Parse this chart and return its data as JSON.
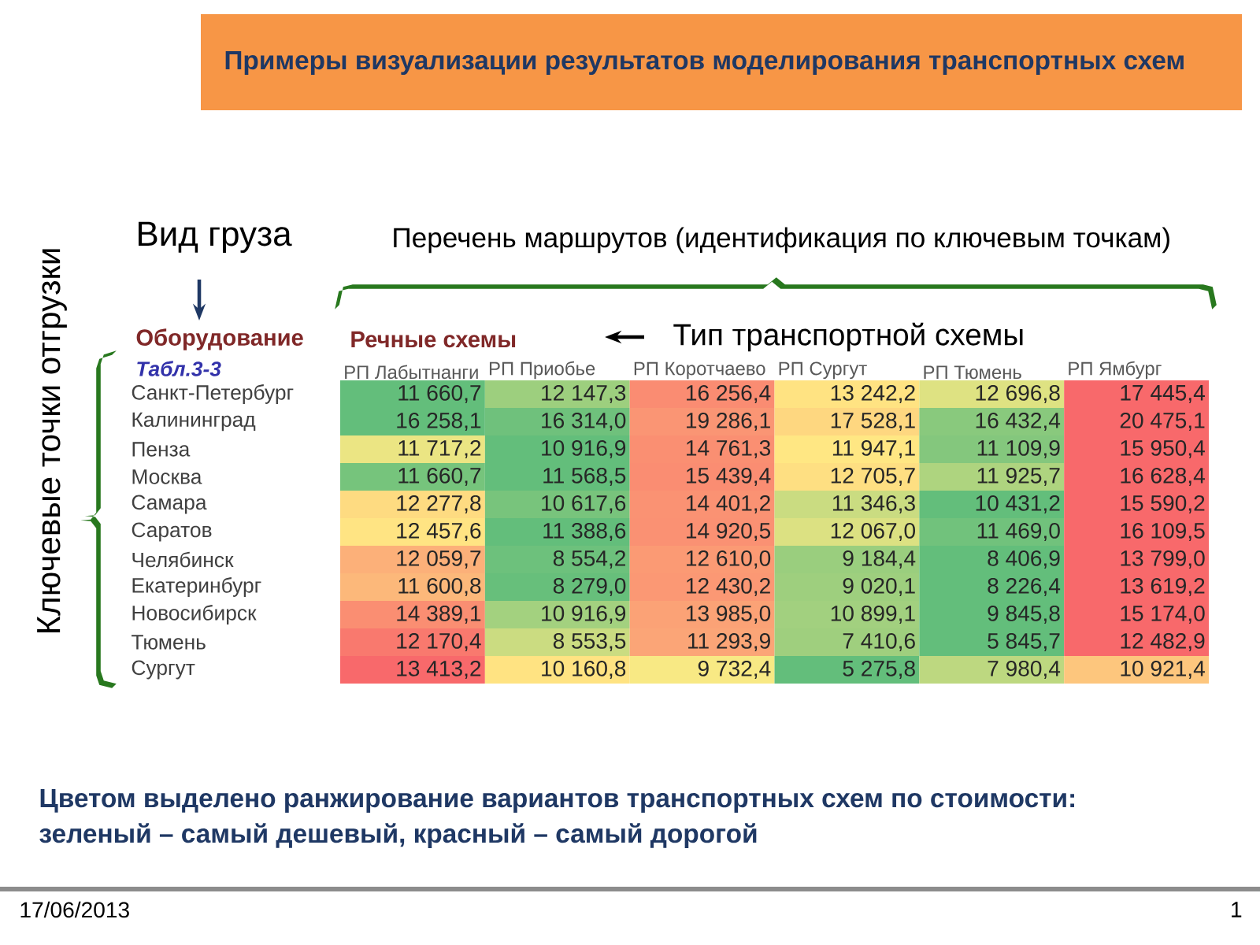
{
  "chart_data": {
    "type": "heatmap",
    "title": "Примеры визуализации результатов моделирования транспортных схем",
    "xlabel": "Перечень маршрутов (идентификация по ключевым точкам)",
    "ylabel": "Ключевые точки отгрузки",
    "annotations": [
      "Вид груза",
      "Тип транспортной схемы",
      "Оборудование",
      "Речные схемы",
      "Табл.3-3",
      "Цветом выделено ранжирование вариантов транспортных схем по стоимости:",
      "зеленый – самый дешевый, красный – самый дорогой",
      "17/06/2013",
      "1"
    ],
    "categories": [
      "РП Лабытнанги",
      "РП Приобье",
      "РП Коротчаево",
      "РП Сургут",
      "РП Тюмень",
      "РП Ямбург"
    ],
    "y_categories": [
      "Санкт-Петербург",
      "Калининград",
      "Пенза",
      "Москва",
      "Самара",
      "Саратов",
      "Челябинск",
      "Екатеринбург",
      "Новосибирск",
      "Тюмень",
      "Сургут"
    ],
    "cells": [
      [
        11660.7,
        12147.3,
        16256.4,
        13242.2,
        12696.8,
        17445.4
      ],
      [
        16258.1,
        16314.0,
        19286.1,
        17528.1,
        16432.4,
        20475.1
      ],
      [
        11717.2,
        10916.9,
        14761.3,
        11947.1,
        11109.9,
        15950.4
      ],
      [
        11660.7,
        11568.5,
        15439.4,
        12705.7,
        11925.7,
        16628.4
      ],
      [
        12277.8,
        10617.6,
        14401.2,
        11346.3,
        10431.2,
        15590.2
      ],
      [
        12457.6,
        11388.6,
        14920.5,
        12067.0,
        11469.0,
        16109.5
      ],
      [
        12059.7,
        8554.2,
        12610.0,
        9184.4,
        8406.9,
        13799.0
      ],
      [
        11600.8,
        8279.0,
        12430.2,
        9020.1,
        8226.4,
        13619.2
      ],
      [
        14389.1,
        10916.9,
        13985.0,
        10899.1,
        9845.8,
        15174.0
      ],
      [
        12170.4,
        8553.5,
        11293.9,
        7410.6,
        5845.7,
        12482.9
      ],
      [
        13413.2,
        10160.8,
        9732.4,
        5275.8,
        7980.4,
        10921.4
      ]
    ],
    "cell_labels": [
      [
        "11 660,7",
        "12 147,3",
        "16 256,4",
        "13 242,2",
        "12 696,8",
        "17 445,4"
      ],
      [
        "16 258,1",
        "16 314,0",
        "19 286,1",
        "17 528,1",
        "16 432,4",
        "20 475,1"
      ],
      [
        "11 717,2",
        "10 916,9",
        "14 761,3",
        "11 947,1",
        "11 109,9",
        "15 950,4"
      ],
      [
        "11 660,7",
        "11 568,5",
        "15 439,4",
        "12 705,7",
        "11 925,7",
        "16 628,4"
      ],
      [
        "12 277,8",
        "10 617,6",
        "14 401,2",
        "11 346,3",
        "10 431,2",
        "15 590,2"
      ],
      [
        "12 457,6",
        "11 388,6",
        "14 920,5",
        "12 067,0",
        "11 469,0",
        "16 109,5"
      ],
      [
        "12 059,7",
        "8 554,2",
        "12 610,0",
        "9 184,4",
        "8 406,9",
        "13 799,0"
      ],
      [
        "11 600,8",
        "8 279,0",
        "12 430,2",
        "9 020,1",
        "8 226,4",
        "13 619,2"
      ],
      [
        "14 389,1",
        "10 916,9",
        "13 985,0",
        "10 899,1",
        "9 845,8",
        "15 174,0"
      ],
      [
        "12 170,4",
        "8 553,5",
        "11 293,9",
        "7 410,6",
        "5 845,7",
        "12 482,9"
      ],
      [
        "13 413,2",
        "10 160,8",
        "9 732,4",
        "5 275,8",
        "7 980,4",
        "10 921,4"
      ]
    ]
  }
}
